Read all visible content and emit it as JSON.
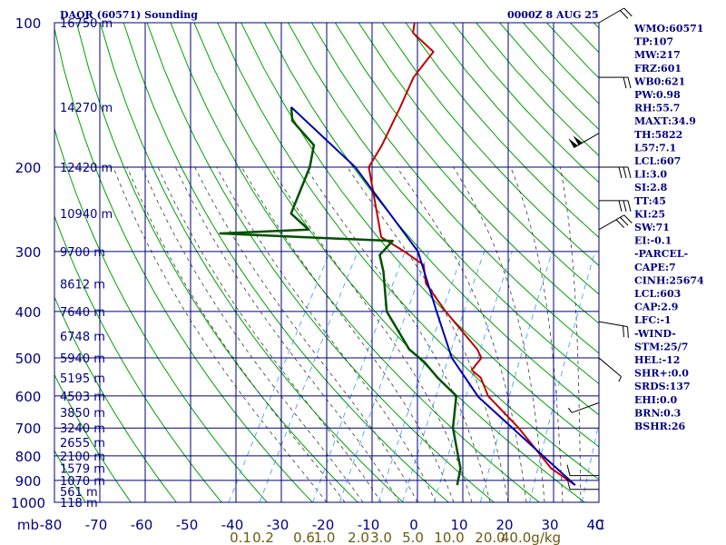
{
  "header": {
    "station": "DAOR (60571) Sounding",
    "datetime": "0000Z  8 AUG 25"
  },
  "colors": {
    "axis": "#000080",
    "dry_adiabat": "#00a000",
    "moist_adiabat": "#3a3a3a",
    "mixing_ratio": "#3399ff",
    "temperature": "#c00000",
    "dewpoint": "#005000",
    "parcel": "#0000b0",
    "mix_label": "#6b5a12"
  },
  "indices": [
    "WMO:60571",
    "TP:107",
    "MW:217",
    "FRZ:601",
    "WB0:621",
    "PW:0.98",
    "RH:55.7",
    "MAXT:34.9",
    "TH:5822",
    "L57:7.1",
    "LCL:607",
    "LI:3.0",
    "SI:2.8",
    "TT:45",
    "KI:25",
    "SW:71",
    "EI:-0.1",
    "-PARCEL-",
    "CAPE:7",
    "CINH:25674",
    "LCL:603",
    "CAP:2.9",
    "LFC:-1",
    "-WIND-",
    "STM:25/7",
    "HEL:-12",
    "SHR+:0.0",
    "SRDS:137",
    "EHI:0.0",
    "BRN:0.3",
    "BSHR:26"
  ],
  "chart_data": {
    "type": "line",
    "chart_kind": "skew-T log-p sounding",
    "title": "DAOR (60571) Sounding",
    "xlabel": "C",
    "ylabel": "mb",
    "xlim": [
      -80,
      40
    ],
    "ylim": [
      1000,
      100
    ],
    "y_scale": "log",
    "grid": true,
    "pressure_levels": [
      100,
      200,
      300,
      400,
      500,
      600,
      700,
      800,
      900,
      1000
    ],
    "temperature_ticks": [
      -80,
      -70,
      -60,
      -50,
      -40,
      -30,
      -20,
      -10,
      0,
      10,
      20,
      30,
      40
    ],
    "height_labels": [
      {
        "p": 100,
        "label": "16750 m"
      },
      {
        "p": 150,
        "label": "14270 m"
      },
      {
        "p": 200,
        "label": "12420 m"
      },
      {
        "p": 250,
        "label": "10940 m"
      },
      {
        "p": 300,
        "label": "9700 m"
      },
      {
        "p": 350,
        "label": "8612 m"
      },
      {
        "p": 400,
        "label": "7640 m"
      },
      {
        "p": 450,
        "label": "6748 m"
      },
      {
        "p": 500,
        "label": "5940 m"
      },
      {
        "p": 550,
        "label": "5195 m"
      },
      {
        "p": 600,
        "label": "4503 m"
      },
      {
        "p": 650,
        "label": "3850 m"
      },
      {
        "p": 700,
        "label": "3240 m"
      },
      {
        "p": 750,
        "label": "2655 m"
      },
      {
        "p": 800,
        "label": "2100 m"
      },
      {
        "p": 850,
        "label": "1579 m"
      },
      {
        "p": 900,
        "label": "1070 m"
      },
      {
        "p": 950,
        "label": "561 m"
      },
      {
        "p": 1000,
        "label": "118 m"
      }
    ],
    "mixing_ratio_labels": [
      {
        "w": 0.1,
        "label": "0.1",
        "t_base": -39
      },
      {
        "w": 0.2,
        "label": "0.2",
        "t_base": -34
      },
      {
        "w": 0.6,
        "label": "0.6",
        "t_base": -25
      },
      {
        "w": 1.0,
        "label": "1.0",
        "t_base": -20.5
      },
      {
        "w": 2.0,
        "label": "2.0",
        "t_base": -13
      },
      {
        "w": 3.0,
        "label": "3.0",
        "t_base": -8
      },
      {
        "w": 5.0,
        "label": "5.0",
        "t_base": -1
      },
      {
        "w": 10.0,
        "label": "10.0",
        "t_base": 7
      },
      {
        "w": 20.0,
        "label": "20.0",
        "t_base": 16
      },
      {
        "w": 40.0,
        "label": "40.0",
        "t_base": 25
      }
    ],
    "mix_units": "g/kg",
    "series": [
      {
        "key": "temperature",
        "points": [
          [
            921,
            32.5
          ],
          [
            850,
            25
          ],
          [
            700,
            12.5
          ],
          [
            600,
            1.5
          ],
          [
            550,
            -2.5
          ],
          [
            530,
            -5.5
          ],
          [
            500,
            -5
          ],
          [
            480,
            -7
          ],
          [
            400,
            -19
          ],
          [
            350,
            -27
          ],
          [
            320,
            -30
          ],
          [
            300,
            -36
          ],
          [
            280,
            -43
          ],
          [
            200,
            -55
          ],
          [
            180,
            -55
          ],
          [
            150,
            -56
          ],
          [
            130,
            -57
          ],
          [
            122,
            -56.5
          ],
          [
            115,
            -56
          ],
          [
            105,
            -63
          ],
          [
            100,
            -64
          ]
        ]
      },
      {
        "key": "dewpoint",
        "points": [
          [
            921,
            6.5
          ],
          [
            850,
            5
          ],
          [
            700,
            -2
          ],
          [
            600,
            -5.5
          ],
          [
            550,
            -12
          ],
          [
            510,
            -17
          ],
          [
            480,
            -22
          ],
          [
            400,
            -32
          ],
          [
            330,
            -38
          ],
          [
            305,
            -41
          ],
          [
            285,
            -40
          ],
          [
            280,
            -60
          ],
          [
            275,
            -79
          ],
          [
            270,
            -60
          ],
          [
            250,
            -66
          ],
          [
            200,
            -68
          ],
          [
            180,
            -70
          ],
          [
            160,
            -78
          ],
          [
            150,
            -80
          ]
        ]
      },
      {
        "key": "parcel",
        "points": [
          [
            921,
            32.5
          ],
          [
            603,
            -0.5
          ],
          [
            500,
            -11.5
          ],
          [
            400,
            -21
          ],
          [
            300,
            -33
          ],
          [
            200,
            -58
          ],
          [
            150,
            -80
          ]
        ]
      }
    ],
    "wind_barbs": [
      {
        "p": 100,
        "dir": 60,
        "spd": 20
      },
      {
        "p": 130,
        "dir": 90,
        "spd": 20
      },
      {
        "p": 170,
        "dir": 240,
        "spd": 100
      },
      {
        "p": 200,
        "dir": 90,
        "spd": 30
      },
      {
        "p": 235,
        "dir": 90,
        "spd": 30
      },
      {
        "p": 270,
        "dir": 60,
        "spd": 30
      },
      {
        "p": 420,
        "dir": 100,
        "spd": 20
      },
      {
        "p": 500,
        "dir": 130,
        "spd": 5
      },
      {
        "p": 620,
        "dir": 250,
        "spd": 5
      },
      {
        "p": 880,
        "dir": 270,
        "spd": 10
      },
      {
        "p": 940,
        "dir": 270,
        "spd": 10
      }
    ]
  }
}
